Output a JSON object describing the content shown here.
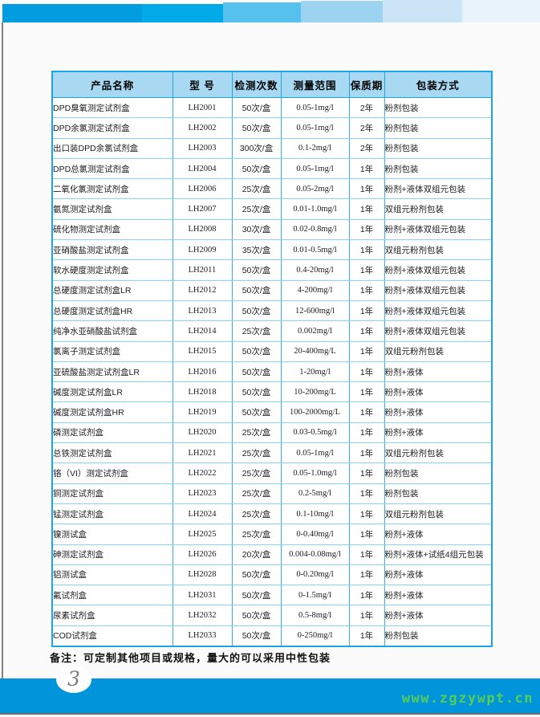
{
  "banner": {
    "segments": [
      {
        "color": "#009ce0"
      },
      {
        "color": "#00a9e8"
      },
      {
        "color": "#56c1ec"
      },
      {
        "color": "#9cd3f1"
      },
      {
        "color": "#cbe5f6"
      },
      {
        "color": "#e8f3fb"
      }
    ]
  },
  "table": {
    "headers": [
      "产品名称",
      "型  号",
      "检测次数",
      "测量范围",
      "保质期",
      "包装方式"
    ],
    "rows": [
      [
        "DPD臭氧测定试剂盒",
        "LH2001",
        "50次/盒",
        "0.05-1mg/l",
        "2年",
        "粉剂包装"
      ],
      [
        "DPD余氯测定试剂盒",
        "LH2002",
        "50次/盒",
        "0.05-1mg/l",
        "2年",
        "粉剂包装"
      ],
      [
        "出口装DPD余氯试剂盒",
        "LH2003",
        "300次/盒",
        "0.1-2mg/l",
        "2年",
        "粉剂包装"
      ],
      [
        "DPD总氯测定试剂盒",
        "LH2004",
        "50次/盒",
        "0.05-1mg/l",
        "1年",
        "粉剂包装"
      ],
      [
        "二氧化氯测定试剂盒",
        "LH2006",
        "25次/盒",
        "0.05-2mg/l",
        "1年",
        "粉剂+液体双组元包装"
      ],
      [
        "氨氮测定试剂盒",
        "LH2007",
        "25次/盒",
        "0.01-1.0mg/l",
        "1年",
        "双组元粉剂包装"
      ],
      [
        "硫化物测定试剂盒",
        "LH2008",
        "30次/盒",
        "0.02-0.8mg/l",
        "1年",
        "粉剂+液体双组元包装"
      ],
      [
        "亚硝酸盐测定试剂盒",
        "LH2009",
        "35次/盒",
        "0.01-0.5mg/l",
        "1年",
        "双组元粉剂包装"
      ],
      [
        "软水硬度测定试剂盒",
        "LH2011",
        "50次/盒",
        "0.4-20mg/l",
        "1年",
        "粉剂+液体双组元包装"
      ],
      [
        "总硬度测定试剂盒LR",
        "LH2012",
        "50次/盒",
        "4-200mg/l",
        "1年",
        "粉剂+液体双组元包装"
      ],
      [
        "总硬度测定试剂盒HR",
        "LH2013",
        "50次/盒",
        "12-600mg/l",
        "1年",
        "粉剂+液体双组元包装"
      ],
      [
        "纯净水亚硝酸盐试剂盒",
        "LH2014",
        "25次/盒",
        "0.002mg/l",
        "1年",
        "粉剂+液体双组元包装"
      ],
      [
        "氯离子测定试剂盒",
        "LH2015",
        "50次/盒",
        "20-400mg/L",
        "1年",
        "双组元粉剂包装"
      ],
      [
        "亚硫酸盐测定试剂盒LR",
        "LH2016",
        "50次/盒",
        "1-20mg/l",
        "1年",
        "粉剂+液体"
      ],
      [
        "碱度测定试剂盒LR",
        "LH2018",
        "50次/盒",
        "10-200mg/L",
        "1年",
        "粉剂+液体"
      ],
      [
        "碱度测定试剂盒HR",
        "LH2019",
        "50次/盒",
        "100-2000mg/L",
        "1年",
        "粉剂+液体"
      ],
      [
        "磷测定试剂盒",
        "LH2020",
        "25次/盒",
        "0.03-0.5mg/l",
        "1年",
        "粉剂+液体"
      ],
      [
        "总铁测定试剂盒",
        "LH2021",
        "25次/盒",
        "0.05-1mg/l",
        "1年",
        "双组元粉剂包装"
      ],
      [
        "铬（VI）测定试剂盒",
        "LH2022",
        "25次/盒",
        "0.05-1.0mg/l",
        "1年",
        "粉剂包装"
      ],
      [
        "铜测定试剂盒",
        "LH2023",
        "25次/盒",
        "0.2-5mg/l",
        "1年",
        "粉剂包装"
      ],
      [
        "锰测定试剂盒",
        "LH2024",
        "25次/盒",
        "0.1-10mg/l",
        "1年",
        "双组元粉剂包装"
      ],
      [
        "镍测试盒",
        "LH2025",
        "25次/盒",
        "0-0.40mg/l",
        "1年",
        "粉剂+液体"
      ],
      [
        "砷测定试剂盒",
        "LH2026",
        "20次/盒",
        "0.004-0.08mg/l",
        "1年",
        "粉剂+液体+试纸4组元包装"
      ],
      [
        "铝测试盒",
        "LH2028",
        "50次/盒",
        "0-0.20mg/l",
        "1年",
        "粉剂+液体"
      ],
      [
        "氟试剂盒",
        "LH2031",
        "50次/盒",
        "0-1.5mg/l",
        "1年",
        "粉剂+液体"
      ],
      [
        "尿素试剂盒",
        "LH2032",
        "50次/盒",
        "0.5-8mg/l",
        "1年",
        "粉剂+液体"
      ],
      [
        "COD试剂盒",
        "LH2033",
        "50次/盒",
        "0-250mg/l",
        "1年",
        "粉剂包装"
      ]
    ]
  },
  "note": {
    "text": "备注：可定制其他项目或规格，量大的可以采用中性包装"
  },
  "footer": {
    "page_number": "3",
    "watermark": "www.zgzywpt.cn"
  },
  "colors": {
    "bar_blue": "#0095da",
    "header_bg": "#a9d8f2",
    "border_blue": "#1ca4e4",
    "grid_blue": "#8bd1f2",
    "watermark_green": "#55ce58"
  }
}
